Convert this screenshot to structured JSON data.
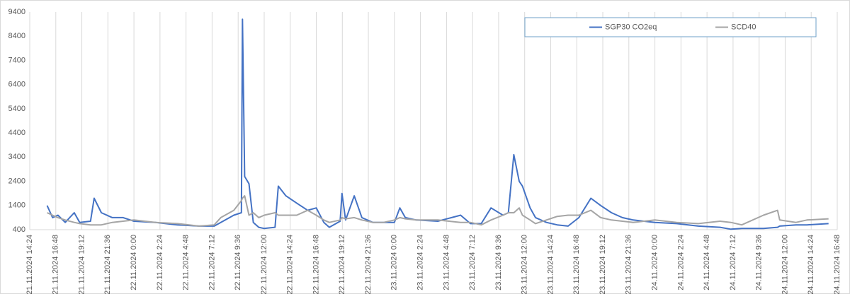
{
  "chart_data": {
    "type": "line",
    "x": [
      "21.11.2024 16:00",
      "21.11.2024 16:30",
      "21.11.2024 17:00",
      "21.11.2024 17:40",
      "21.11.2024 18:30",
      "21.11.2024 19:00",
      "21.11.2024 20:00",
      "21.11.2024 20:20",
      "21.11.2024 21:00",
      "21.11.2024 22:00",
      "21.11.2024 23:00",
      "22.11.2024 0:00",
      "22.11.2024 2:00",
      "22.11.2024 4:00",
      "22.11.2024 6:00",
      "22.11.2024 7:24",
      "22.11.2024 8:00",
      "22.11.2024 9:12",
      "22.11.2024 9:54",
      "22.11.2024 10:00",
      "22.11.2024 10:12",
      "22.11.2024 10:36",
      "22.11.2024 11:00",
      "22.11.2024 11:30",
      "22.11.2024 12:00",
      "22.11.2024 13:00",
      "22.11.2024 13:18",
      "22.11.2024 14:00",
      "22.11.2024 15:00",
      "22.11.2024 16:00",
      "22.11.2024 16:48",
      "22.11.2024 17:30",
      "22.11.2024 18:00",
      "22.11.2024 19:00",
      "22.11.2024 19:10",
      "22.11.2024 19:30",
      "22.11.2024 20:18",
      "22.11.2024 21:00",
      "22.11.2024 22:00",
      "22.11.2024 23:00",
      "23.11.2024 0:00",
      "23.11.2024 0:30",
      "23.11.2024 1:00",
      "23.11.2024 2:00",
      "23.11.2024 4:00",
      "23.11.2024 6:06",
      "23.11.2024 7:00",
      "23.11.2024 8:00",
      "23.11.2024 8:54",
      "23.11.2024 10:00",
      "23.11.2024 10:30",
      "23.11.2024 11:00",
      "23.11.2024 11:30",
      "23.11.2024 11:48",
      "23.11.2024 12:30",
      "23.11.2024 13:00",
      "23.11.2024 14:00",
      "23.11.2024 15:00",
      "23.11.2024 16:00",
      "23.11.2024 17:00",
      "23.11.2024 18:06",
      "23.11.2024 19:00",
      "23.11.2024 20:00",
      "23.11.2024 21:00",
      "23.11.2024 22:00",
      "24.11.2024 0:00",
      "24.11.2024 2:00",
      "24.11.2024 4:00",
      "24.11.2024 6:00",
      "24.11.2024 7:00",
      "24.11.2024 8:00",
      "24.11.2024 10:00",
      "24.11.2024 11:18",
      "24.11.2024 11:30",
      "24.11.2024 13:00",
      "24.11.2024 14:00",
      "24.11.2024 16:00"
    ],
    "series": [
      {
        "name": "SGP30 CO2eq",
        "color": "#4472c4",
        "values": [
          1400,
          900,
          1000,
          700,
          1100,
          700,
          750,
          1700,
          1100,
          900,
          900,
          750,
          700,
          600,
          550,
          550,
          700,
          1000,
          1100,
          9100,
          2600,
          2300,
          700,
          500,
          450,
          500,
          2200,
          1800,
          1500,
          1200,
          1300,
          700,
          500,
          750,
          1900,
          800,
          1800,
          900,
          700,
          700,
          700,
          1300,
          900,
          800,
          750,
          1000,
          650,
          650,
          1300,
          1000,
          1100,
          3500,
          2400,
          2200,
          1300,
          900,
          700,
          600,
          550,
          900,
          1700,
          1400,
          1100,
          900,
          800,
          700,
          650,
          550,
          500,
          420,
          450,
          450,
          500,
          550,
          600,
          600,
          650
        ]
      },
      {
        "name": "SCD40",
        "color": "#a5a5a5",
        "values": [
          1100,
          1000,
          900,
          800,
          700,
          650,
          600,
          600,
          600,
          700,
          750,
          800,
          700,
          650,
          550,
          600,
          900,
          1200,
          1600,
          1700,
          1800,
          1000,
          1100,
          900,
          1000,
          1100,
          1000,
          1000,
          1000,
          1200,
          1000,
          800,
          700,
          800,
          900,
          850,
          900,
          800,
          700,
          700,
          800,
          900,
          850,
          800,
          800,
          700,
          700,
          600,
          800,
          1000,
          1100,
          1100,
          1300,
          1000,
          800,
          650,
          800,
          950,
          1000,
          1000,
          1200,
          900,
          800,
          750,
          700,
          800,
          700,
          650,
          750,
          700,
          600,
          1000,
          1200,
          800,
          700,
          800,
          850
        ]
      }
    ],
    "xticks": [
      "21.11.2024 14:24",
      "21.11.2024 16:48",
      "21.11.2024 19:12",
      "21.11.2024 21:36",
      "22.11.2024 0:00",
      "22.11.2024 2:24",
      "22.11.2024 4:48",
      "22.11.2024 7:12",
      "22.11.2024 9:36",
      "22.11.2024 12:00",
      "22.11.2024 14:24",
      "22.11.2024 16:48",
      "22.11.2024 19:12",
      "22.11.2024 21:36",
      "23.11.2024 0:00",
      "23.11.2024 2:24",
      "23.11.2024 4:48",
      "23.11.2024 7:12",
      "23.11.2024 9:36",
      "23.11.2024 12:00",
      "23.11.2024 14:24",
      "23.11.2024 16:48",
      "23.11.2024 19:12",
      "23.11.2024 21:36",
      "24.11.2024 0:00",
      "24.11.2024 2:24",
      "24.11.2024 4:48",
      "24.11.2024 7:12",
      "24.11.2024 9:36",
      "24.11.2024 12:00",
      "24.11.2024 14:24",
      "24.11.2024 16:48"
    ],
    "ylim": [
      400,
      9400
    ],
    "yticks": [
      400,
      1400,
      2400,
      3400,
      4400,
      5400,
      6400,
      7400,
      8400,
      9400
    ],
    "grid": "x",
    "legend": "top-right"
  }
}
